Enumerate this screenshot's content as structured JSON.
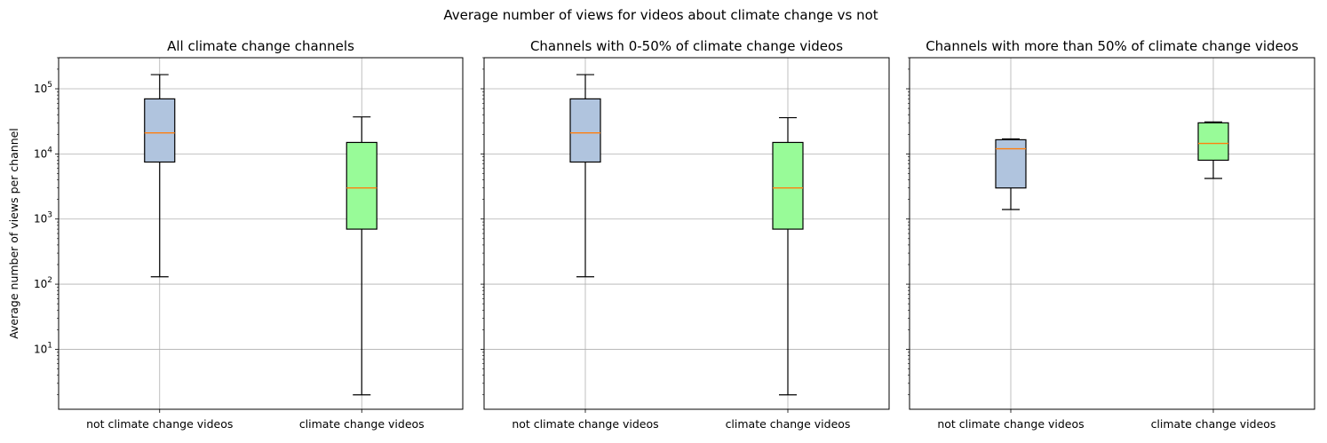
{
  "figure": {
    "suptitle": "Average number of views for videos about climate change vs not"
  },
  "colors": {
    "not_climate_box": "#b0c4de",
    "climate_box": "#98fb98",
    "median": "#ff7f0e",
    "grid": "#b0b0b0"
  },
  "chart_data": [
    {
      "type": "box",
      "title": "All climate change channels",
      "xlabel": "",
      "ylabel": "Average number of views per channel",
      "yscale": "log",
      "ylim": [
        1.2,
        300000
      ],
      "grid": true,
      "categories": [
        "not climate change videos",
        "climate change videos"
      ],
      "boxes": [
        {
          "whislo": 130,
          "q1": 7500,
          "med": 21000,
          "q3": 70000,
          "whishi": 165000
        },
        {
          "whislo": 2,
          "q1": 700,
          "med": 3000,
          "q3": 15000,
          "whishi": 37000
        }
      ]
    },
    {
      "type": "box",
      "title": "Channels with 0-50% of climate change videos",
      "xlabel": "",
      "ylabel": "",
      "yscale": "log",
      "ylim": [
        1.2,
        300000
      ],
      "grid": true,
      "categories": [
        "not climate change videos",
        "climate change videos"
      ],
      "boxes": [
        {
          "whislo": 130,
          "q1": 7500,
          "med": 21000,
          "q3": 70000,
          "whishi": 165000
        },
        {
          "whislo": 2,
          "q1": 700,
          "med": 3000,
          "q3": 15000,
          "whishi": 36000
        }
      ]
    },
    {
      "type": "box",
      "title": "Channels with more than 50% of climate change videos",
      "xlabel": "",
      "ylabel": "",
      "yscale": "log",
      "ylim": [
        1.2,
        300000
      ],
      "grid": true,
      "categories": [
        "not climate change videos",
        "climate change videos"
      ],
      "boxes": [
        {
          "whislo": 1400,
          "q1": 3000,
          "med": 12000,
          "q3": 16500,
          "whishi": 17000
        },
        {
          "whislo": 4200,
          "q1": 8000,
          "med": 14500,
          "q3": 30000,
          "whishi": 31000
        }
      ]
    }
  ]
}
